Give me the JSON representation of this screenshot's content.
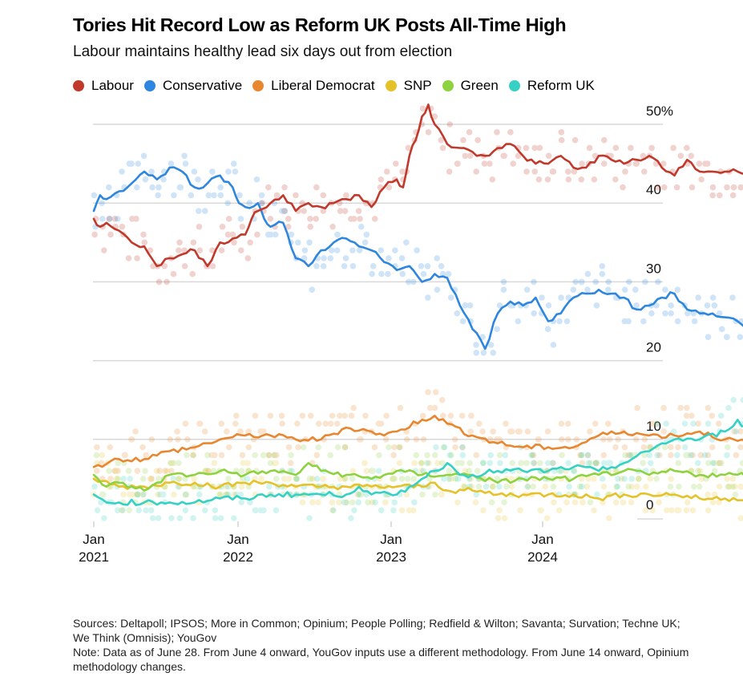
{
  "header": {
    "title": "Tories Hit Record Low as Reform UK Posts All-Time High",
    "subtitle": "Labour maintains healthy lead six days out from election"
  },
  "footer": {
    "sources": "Sources: Deltapoll; IPSOS; More in Common; Opinium; People Polling; Redfield & Wilton; Savanta; Survation; Techne UK; We Think (Omnisis); YouGov",
    "note": "Note: Data as of June 28. From June 4 onward, YouGov inputs use a different methodology. From June 14 onward, Opinium methodology changes."
  },
  "chart_data": {
    "type": "line",
    "title": "Tories Hit Record Low as Reform UK Posts All-Time High",
    "subtitle": "Labour maintains healthy lead six days out from election",
    "xlabel": "",
    "ylabel": "",
    "x_unit": "months since Jan 2021",
    "xlim": [
      0,
      54.9
    ],
    "ylim": [
      0,
      50
    ],
    "y_ticks": [
      0,
      10,
      20,
      30,
      40,
      50
    ],
    "y_tick_labels": [
      "0",
      "10",
      "20",
      "30",
      "40",
      "50%"
    ],
    "x_ticks": [
      0,
      12,
      24,
      36
    ],
    "x_tick_labels": [
      [
        "Jan",
        "2021"
      ],
      [
        "Jan",
        "2022"
      ],
      [
        "Jan",
        "2023"
      ],
      [
        "Jan",
        "2024"
      ]
    ],
    "grid": true,
    "y_axis_side": "right",
    "legend_position": "top-left",
    "background_points": "individual polls shown as faint dots around each series",
    "series": [
      {
        "name": "Labour",
        "color": "#c0392b",
        "x": [
          0,
          0.5,
          1,
          2,
          3,
          4,
          5,
          6,
          7,
          8,
          9,
          10,
          11,
          12,
          12.5,
          13,
          14,
          15,
          16,
          17,
          18,
          19,
          20,
          21,
          22,
          23,
          24,
          24.5,
          25,
          25.5,
          26,
          26.5,
          27,
          28,
          29,
          30,
          31,
          32,
          33,
          34,
          35,
          36,
          37,
          38,
          39,
          40,
          41,
          42,
          43,
          44,
          45,
          46,
          47,
          48,
          49,
          50,
          51,
          52,
          53,
          53.5,
          54,
          54.8
        ],
        "values": [
          38,
          37,
          37.5,
          36.5,
          35,
          34.5,
          32,
          33,
          33.5,
          34,
          32,
          35,
          35.5,
          36,
          38,
          39,
          40,
          41,
          39,
          40,
          39.5,
          40,
          40.5,
          41,
          39.5,
          42,
          43,
          42,
          46,
          48,
          51,
          52.5,
          50,
          47.5,
          47,
          46.5,
          46,
          47,
          47.5,
          46,
          45,
          45,
          46,
          44.5,
          44.5,
          46,
          45.5,
          45,
          45.5,
          46,
          44.5,
          43.5,
          45.5,
          44,
          44,
          44,
          44,
          44,
          45,
          45.5,
          43.5,
          41
        ]
      },
      {
        "name": "Conservative",
        "color": "#2e86de",
        "x": [
          0,
          0.5,
          1,
          2,
          3,
          4,
          5,
          6,
          7,
          8,
          9,
          10,
          11,
          11.5,
          12,
          13,
          13.5,
          14,
          15,
          16,
          17,
          18,
          19,
          20,
          21,
          22,
          23,
          24,
          25,
          26,
          27,
          28,
          29,
          30,
          31,
          32,
          33,
          34,
          35,
          36,
          37,
          38,
          39,
          40,
          41,
          42,
          43,
          44,
          45,
          46,
          47,
          48,
          49,
          50,
          51,
          52,
          53,
          54,
          54.8
        ],
        "values": [
          39,
          41,
          40.5,
          41.5,
          42.5,
          44,
          43,
          44.5,
          44,
          42,
          42.5,
          43.5,
          42,
          40,
          39.5,
          40,
          38,
          37,
          37.5,
          33,
          32,
          34,
          35,
          35.5,
          34.5,
          34,
          32.5,
          31.5,
          32,
          30,
          31,
          30.5,
          27,
          24,
          21.5,
          26,
          27.5,
          27,
          28,
          25,
          26,
          28,
          28.5,
          29,
          28.5,
          28,
          26.5,
          27,
          28,
          28.5,
          26.5,
          26,
          26,
          25.5,
          25,
          24,
          23.5,
          24,
          20.5
        ]
      },
      {
        "name": "Liberal Democrat",
        "color": "#e8872f",
        "x": [
          0,
          2,
          4,
          6,
          8,
          10,
          12,
          14,
          16,
          18,
          20,
          22,
          23,
          24,
          26,
          27,
          28,
          30,
          32,
          34,
          36,
          38,
          40,
          42,
          44,
          46,
          48,
          50,
          52,
          53,
          54,
          54.8
        ],
        "values": [
          6.5,
          7.5,
          7.5,
          8.5,
          9,
          10,
          10.5,
          10.5,
          10,
          10,
          11.5,
          11,
          10.5,
          11,
          12.5,
          13,
          12,
          10.5,
          9.5,
          9,
          9,
          9,
          10.5,
          11,
          10.5,
          10.5,
          11,
          10,
          9.5,
          10,
          9,
          11.5
        ]
      },
      {
        "name": "SNP",
        "color": "#e6c229",
        "x": [
          0,
          2,
          4,
          6,
          8,
          10,
          12,
          14,
          16,
          18,
          20,
          22,
          24,
          26,
          27,
          28,
          30,
          32,
          34,
          36,
          38,
          40,
          42,
          44,
          46,
          48,
          50,
          52,
          54,
          54.8
        ],
        "values": [
          5,
          4,
          4,
          4.5,
          4.5,
          4,
          4.5,
          4.5,
          4,
          4,
          4,
          4,
          4,
          4,
          4.5,
          3.5,
          3.5,
          3,
          3,
          3,
          3,
          2.5,
          3,
          3,
          3,
          2.5,
          2.5,
          2.5,
          2.5,
          2.5
        ]
      },
      {
        "name": "Green",
        "color": "#8ed23f",
        "x": [
          0,
          1,
          2,
          3,
          4,
          5,
          6,
          8,
          10,
          12,
          14,
          16,
          17,
          18,
          20,
          22,
          24,
          26,
          28,
          30,
          32,
          34,
          36,
          38,
          40,
          42,
          44,
          46,
          48,
          50,
          52,
          53,
          54,
          54.8
        ],
        "values": [
          5.5,
          4,
          4.5,
          4,
          3.5,
          4.5,
          5.5,
          5.5,
          6,
          5.5,
          6,
          5.5,
          7,
          6,
          5.5,
          5,
          6,
          5.5,
          5.5,
          5.5,
          4.5,
          5,
          5,
          5,
          5.5,
          6,
          5.5,
          6,
          5.5,
          5.5,
          5.5,
          6.5,
          5.5,
          6
        ]
      },
      {
        "name": "Reform UK",
        "color": "#36d1c4",
        "x": [
          0,
          1,
          2,
          4,
          6,
          8,
          10,
          12,
          14,
          16,
          18,
          20,
          21,
          22,
          24,
          25,
          26,
          27,
          28,
          29,
          30,
          32,
          34,
          36,
          38,
          40,
          42,
          44,
          45,
          46,
          48,
          50,
          51,
          52,
          53,
          54,
          54.5,
          54.8
        ],
        "values": [
          3,
          2,
          2,
          2,
          2,
          2,
          2.5,
          2.5,
          3,
          3,
          3,
          3,
          4,
          3,
          3,
          4,
          5,
          6,
          7,
          5.5,
          5.5,
          6,
          6,
          6,
          6.5,
          6,
          7,
          8.5,
          9.5,
          10,
          10,
          11,
          12.5,
          11,
          12,
          12,
          14,
          16
        ]
      }
    ]
  }
}
